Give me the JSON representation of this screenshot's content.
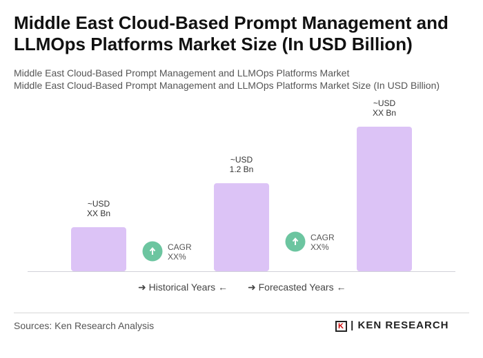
{
  "title": "Middle East Cloud-Based Prompt Management and LLMOps Platforms Market Size (In USD Billion)",
  "subtitle1": "Middle East Cloud-Based Prompt Management and LLMOps Platforms Market",
  "subtitle2": "Middle East Cloud-Based Prompt Management and LLMOps Platforms Market Size (In USD Billion)",
  "chart_data": {
    "type": "bar",
    "title": "Middle East Cloud-Based Prompt Management and LLMOps Platforms Market Size (In USD Billion)",
    "categories": [
      "",
      "",
      ""
    ],
    "values": [
      0.6,
      1.2,
      1.97
    ],
    "data_labels": [
      [
        "~USD",
        "XX Bn"
      ],
      [
        "~USD",
        "1.2 Bn"
      ],
      [
        "~USD",
        "XX Bn"
      ]
    ],
    "cagr_labels": [
      [
        "CAGR",
        "XX%"
      ],
      [
        "CAGR",
        "XX%"
      ]
    ],
    "bar_color": "#dcc3f6",
    "cagr_color": "#6cc5a0",
    "grid": false
  },
  "legend": {
    "historical": "Historical Years",
    "forecasted": "Forecasted Years"
  },
  "sources": "Sources: Ken Research Analysis",
  "logo": "KEN RESEARCH"
}
